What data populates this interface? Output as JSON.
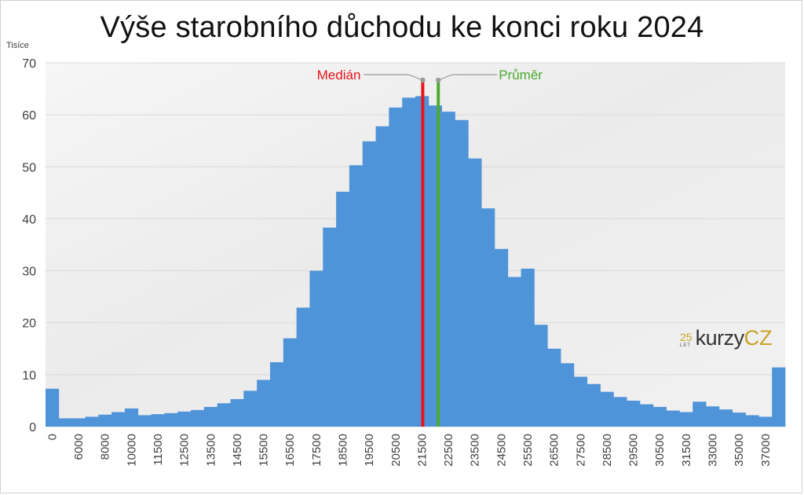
{
  "title": "Výše starobního důchodu ke konci roku 2024",
  "y_unit_label": "Tisíce",
  "logo": {
    "number": "25",
    "subtitle": "LET",
    "word": "kurzy",
    "suffix": "CZ"
  },
  "colors": {
    "bar": "#4f94d9",
    "median": "#e8141c",
    "mean": "#4caa2e",
    "grid": "#d9d9d9",
    "brand": "#c9a227"
  },
  "chart_data": {
    "type": "bar",
    "title": "Výše starobního důchodu ke konci roku 2024",
    "ylabel": "Tisíce",
    "ylim": [
      0,
      70
    ],
    "yticks": [
      0,
      10,
      20,
      30,
      40,
      50,
      60,
      70
    ],
    "x_tick_labels": [
      "0",
      "6000",
      "8000",
      "10000",
      "11500",
      "12500",
      "13500",
      "14500",
      "15500",
      "16500",
      "17500",
      "18500",
      "19500",
      "20500",
      "21500",
      "22500",
      "23500",
      "24500",
      "25500",
      "26500",
      "27500",
      "28500",
      "29500",
      "30500",
      "31500",
      "33000",
      "35000",
      "37000"
    ],
    "values": [
      7.3,
      1.6,
      1.6,
      1.9,
      2.3,
      2.8,
      3.5,
      2.2,
      2.4,
      2.6,
      2.9,
      3.2,
      3.8,
      4.5,
      5.3,
      6.9,
      9.0,
      12.4,
      17.0,
      22.9,
      30.0,
      38.3,
      45.2,
      50.3,
      54.9,
      57.8,
      61.4,
      63.3,
      63.6,
      61.8,
      60.6,
      59.0,
      51.6,
      42.0,
      34.2,
      28.8,
      30.4,
      19.6,
      15.0,
      12.2,
      9.6,
      8.2,
      6.7,
      5.7,
      5.0,
      4.3,
      3.8,
      3.1,
      2.8,
      4.8,
      3.9,
      3.3,
      2.7,
      2.2,
      1.9,
      11.4
    ],
    "reference_lines": [
      {
        "name": "Medián",
        "value": 21500
      },
      {
        "name": "Průměr",
        "value": 22000
      }
    ],
    "grid": true,
    "legend": "none"
  }
}
